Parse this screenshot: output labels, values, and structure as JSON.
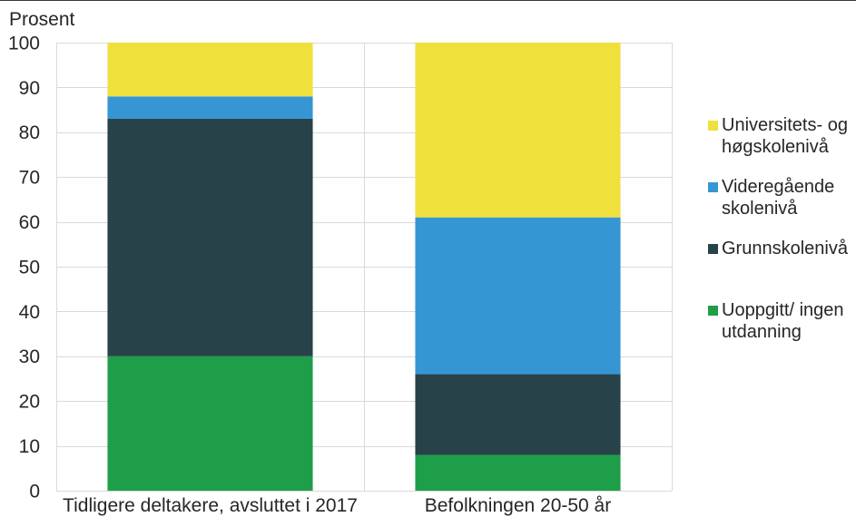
{
  "chart_data": {
    "type": "bar",
    "stacked": true,
    "ylabel": "Prosent",
    "ylim": [
      0,
      100
    ],
    "yticks": [
      0,
      10,
      20,
      30,
      40,
      50,
      60,
      70,
      80,
      90,
      100
    ],
    "categories": [
      "Tidligere deltakere, avsluttet i 2017",
      "Befolkningen 20-50 år"
    ],
    "series": [
      {
        "name": "Uoppgitt/ ingen utdanning",
        "color": "#1f9e49",
        "values": [
          30,
          8
        ]
      },
      {
        "name": "Grunnskolenivå",
        "color": "#28424a",
        "values": [
          53,
          18
        ]
      },
      {
        "name": "Videregående skolenivå",
        "color": "#3696d4",
        "values": [
          5,
          35
        ]
      },
      {
        "name": "Universitets- og høgskolenivå",
        "color": "#efe03c",
        "values": [
          12,
          39
        ]
      }
    ],
    "grid": true,
    "legend": "right"
  },
  "colors": {
    "gridline": "#d9d9d9",
    "text": "#262626"
  }
}
